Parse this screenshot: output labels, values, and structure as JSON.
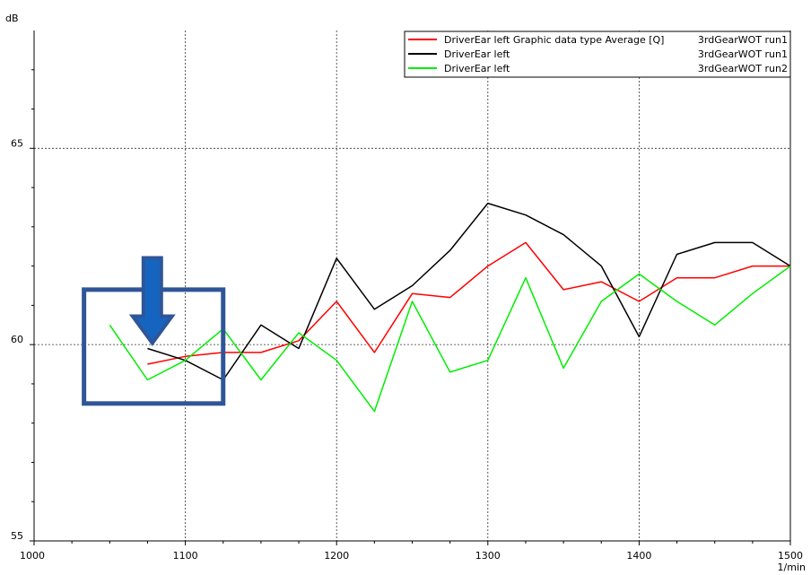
{
  "chart_data": {
    "type": "line",
    "title": "",
    "xlabel": "1/min",
    "ylabel": "dB",
    "xlim": [
      1000,
      1500
    ],
    "ylim": [
      55,
      68
    ],
    "x_ticks": [
      "1000",
      "1100",
      "1200",
      "1300",
      "1400",
      "1500"
    ],
    "y_ticks": [
      "55",
      "60",
      "65"
    ],
    "grid": true,
    "legend_position": "top-right",
    "series": [
      {
        "name": "DriverEar left  Graphic data type  Average [Q]",
        "run": "3rdGearWOT run1",
        "color": "#ff0000",
        "x": [
          1075,
          1100,
          1125,
          1150,
          1175,
          1200,
          1225,
          1250,
          1275,
          1300,
          1325,
          1350,
          1375,
          1400,
          1425,
          1450,
          1475,
          1500
        ],
        "y": [
          59.5,
          59.7,
          59.8,
          59.8,
          60.1,
          61.1,
          59.8,
          61.3,
          61.2,
          62.0,
          62.6,
          61.4,
          61.6,
          61.1,
          61.7,
          61.7,
          62.0,
          62.0
        ]
      },
      {
        "name": "DriverEar left",
        "run": "3rdGearWOT run1",
        "color": "#000000",
        "x": [
          1075,
          1100,
          1125,
          1150,
          1175,
          1200,
          1225,
          1250,
          1275,
          1300,
          1325,
          1350,
          1375,
          1400,
          1425,
          1450,
          1475,
          1500
        ],
        "y": [
          59.9,
          59.6,
          59.1,
          60.5,
          59.9,
          62.2,
          60.9,
          61.5,
          62.4,
          63.6,
          63.3,
          62.8,
          62.0,
          60.2,
          62.3,
          62.6,
          62.6,
          62.0
        ]
      },
      {
        "name": "DriverEar left",
        "run": "3rdGearWOT run2",
        "color": "#00ee00",
        "x": [
          1050,
          1075,
          1100,
          1125,
          1150,
          1175,
          1200,
          1225,
          1250,
          1275,
          1300,
          1325,
          1350,
          1375,
          1400,
          1425,
          1450,
          1475,
          1500
        ],
        "y": [
          60.5,
          59.1,
          59.6,
          60.4,
          59.1,
          60.3,
          59.6,
          58.3,
          61.1,
          59.3,
          59.6,
          61.7,
          59.4,
          61.1,
          61.8,
          61.1,
          60.5,
          61.3,
          62.0
        ]
      }
    ],
    "annotations": [
      {
        "type": "box",
        "color": "#2f5597",
        "x_range": [
          1033,
          1125
        ],
        "y_range": [
          58.5,
          61.4
        ]
      },
      {
        "type": "arrow",
        "color": "#2f5597",
        "fill": "#1565c0",
        "points_to": [
          1077,
          59.9
        ]
      }
    ]
  }
}
